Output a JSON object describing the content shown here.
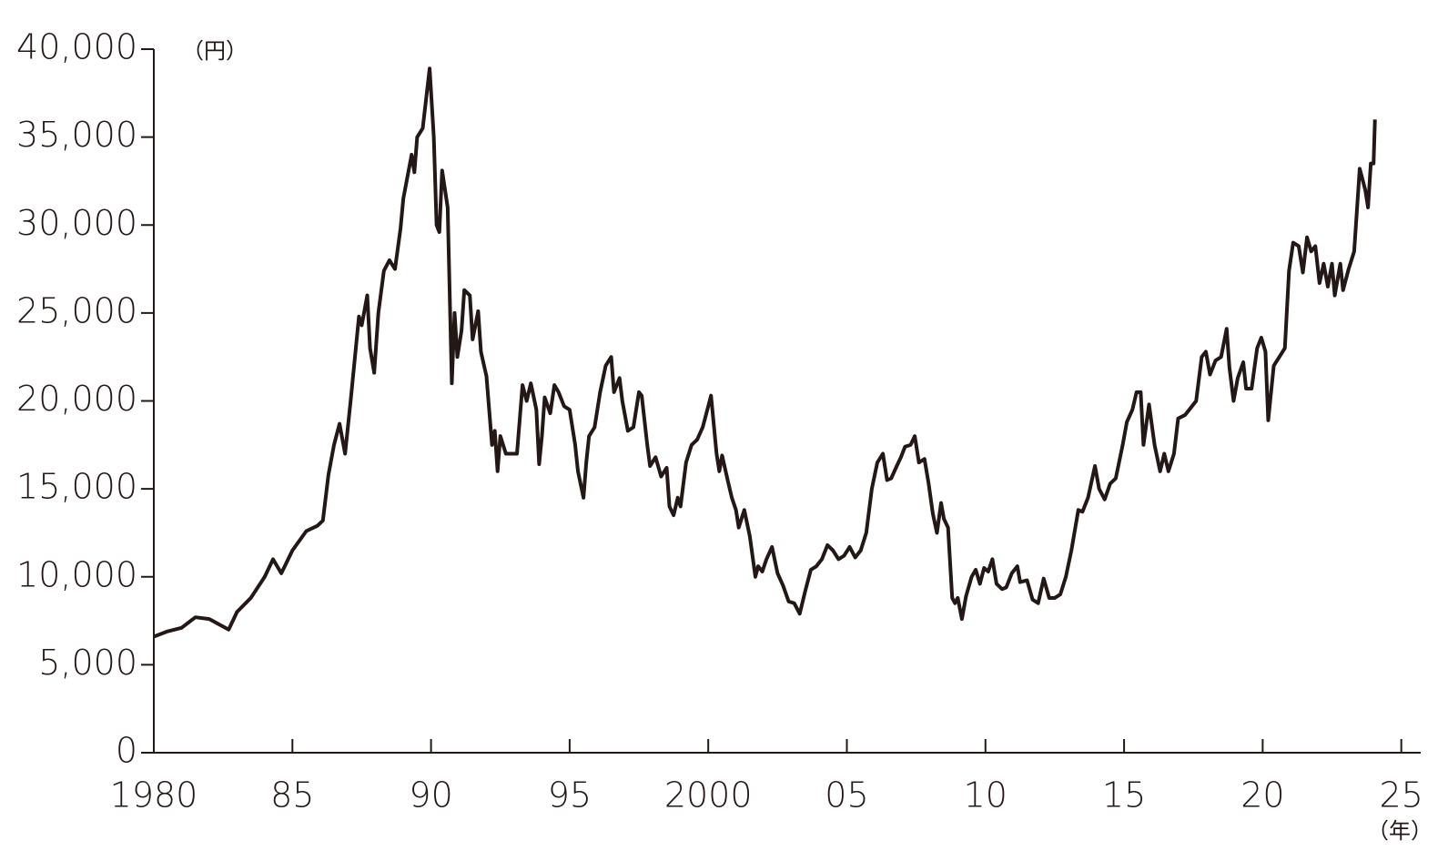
{
  "chart_data": {
    "type": "line",
    "y_unit": "（円）",
    "x_unit": "（年）",
    "color": "#231815",
    "x": [
      1980.0,
      1980.5,
      1981.0,
      1981.5,
      1982.0,
      1982.7,
      1983.0,
      1983.5,
      1984.0,
      1984.3,
      1984.6,
      1985.0,
      1985.5,
      1985.9,
      1986.1,
      1986.3,
      1986.5,
      1986.7,
      1986.9,
      1987.1,
      1987.4,
      1987.5,
      1987.7,
      1987.8,
      1987.95,
      1988.1,
      1988.3,
      1988.5,
      1988.7,
      1988.9,
      1989.0,
      1989.3,
      1989.4,
      1989.5,
      1989.7,
      1989.95,
      1990.1,
      1990.2,
      1990.3,
      1990.4,
      1990.6,
      1990.75,
      1990.85,
      1990.95,
      1991.1,
      1991.2,
      1991.4,
      1991.5,
      1991.7,
      1991.8,
      1992.0,
      1992.2,
      1992.3,
      1992.4,
      1992.5,
      1992.7,
      1992.9,
      1993.1,
      1993.3,
      1993.45,
      1993.6,
      1993.8,
      1993.9,
      1994.0,
      1994.1,
      1994.3,
      1994.45,
      1994.6,
      1994.8,
      1995.0,
      1995.2,
      1995.3,
      1995.5,
      1995.6,
      1995.7,
      1995.9,
      1996.1,
      1996.3,
      1996.5,
      1996.6,
      1996.8,
      1996.9,
      1997.1,
      1997.3,
      1997.5,
      1997.6,
      1997.8,
      1997.9,
      1998.1,
      1998.3,
      1998.5,
      1998.6,
      1998.75,
      1998.9,
      1999.0,
      1999.2,
      1999.4,
      1999.6,
      1999.8,
      2000.1,
      2000.3,
      2000.4,
      2000.5,
      2000.7,
      2000.85,
      2001.0,
      2001.1,
      2001.3,
      2001.5,
      2001.7,
      2001.8,
      2001.95,
      2002.1,
      2002.3,
      2002.5,
      2002.7,
      2002.9,
      2003.1,
      2003.3,
      2003.5,
      2003.7,
      2003.9,
      2004.1,
      2004.3,
      2004.5,
      2004.7,
      2004.9,
      2005.1,
      2005.3,
      2005.5,
      2005.7,
      2005.9,
      2006.1,
      2006.3,
      2006.45,
      2006.6,
      2006.8,
      2006.95,
      2007.1,
      2007.3,
      2007.45,
      2007.6,
      2007.8,
      2007.95,
      2008.1,
      2008.25,
      2008.4,
      2008.5,
      2008.65,
      2008.8,
      2008.9,
      2009.0,
      2009.15,
      2009.3,
      2009.5,
      2009.65,
      2009.8,
      2009.95,
      2010.1,
      2010.25,
      2010.4,
      2010.6,
      2010.75,
      2010.95,
      2011.15,
      2011.25,
      2011.5,
      2011.7,
      2011.9,
      2012.1,
      2012.3,
      2012.5,
      2012.7,
      2012.9,
      2013.1,
      2013.35,
      2013.5,
      2013.7,
      2013.95,
      2014.1,
      2014.3,
      2014.5,
      2014.7,
      2014.95,
      2015.1,
      2015.3,
      2015.45,
      2015.6,
      2015.7,
      2015.9,
      2016.1,
      2016.3,
      2016.45,
      2016.6,
      2016.8,
      2016.95,
      2017.2,
      2017.4,
      2017.6,
      2017.8,
      2017.95,
      2018.1,
      2018.3,
      2018.5,
      2018.7,
      2018.8,
      2018.95,
      2019.1,
      2019.3,
      2019.4,
      2019.6,
      2019.8,
      2019.95,
      2020.1,
      2020.2,
      2020.4,
      2020.6,
      2020.8,
      2020.95,
      2021.1,
      2021.3,
      2021.45,
      2021.6,
      2021.75,
      2021.9,
      2022.05,
      2022.2,
      2022.35,
      2022.5,
      2022.6,
      2022.8,
      2022.9,
      2023.1,
      2023.3,
      2023.5,
      2023.7,
      2023.8,
      2023.9,
      2024.0,
      2024.05
    ],
    "values": [
      6600,
      6900,
      7100,
      7700,
      7600,
      7000,
      8000,
      8800,
      10000,
      11000,
      10200,
      11500,
      12600,
      12900,
      13200,
      15800,
      17500,
      18700,
      17000,
      20000,
      24800,
      24300,
      26000,
      23000,
      21600,
      25000,
      27400,
      28000,
      27500,
      29800,
      31500,
      34000,
      33000,
      35000,
      35500,
      38900,
      35000,
      30000,
      29600,
      33100,
      31000,
      21000,
      25000,
      22500,
      24000,
      26300,
      26000,
      23500,
      25100,
      22800,
      21400,
      17500,
      18300,
      16000,
      18000,
      17000,
      17000,
      17000,
      20900,
      20000,
      21000,
      19500,
      16400,
      18000,
      20200,
      19300,
      20900,
      20500,
      19700,
      19500,
      17500,
      16000,
      14500,
      16500,
      18000,
      18500,
      20500,
      22000,
      22500,
      20500,
      21300,
      20000,
      18300,
      18500,
      20500,
      20300,
      17500,
      16300,
      16800,
      15700,
      16200,
      14000,
      13500,
      14500,
      14000,
      16500,
      17500,
      17800,
      18500,
      20300,
      17000,
      16000,
      16900,
      15500,
      14500,
      13800,
      12800,
      13800,
      12300,
      10000,
      10600,
      10300,
      11000,
      11700,
      10200,
      9500,
      8600,
      8500,
      7900,
      9200,
      10400,
      10600,
      11000,
      11800,
      11500,
      11000,
      11200,
      11700,
      11100,
      11500,
      12500,
      15000,
      16500,
      17000,
      15500,
      15600,
      16300,
      16800,
      17400,
      17500,
      18000,
      16500,
      16700,
      15300,
      13600,
      12500,
      14200,
      13300,
      12800,
      8800,
      8500,
      8800,
      7600,
      8900,
      10000,
      10400,
      9600,
      10500,
      10300,
      11000,
      9600,
      9300,
      9400,
      10200,
      10600,
      9700,
      9800,
      8700,
      8500,
      9900,
      8800,
      8800,
      9000,
      10000,
      11500,
      13800,
      13700,
      14500,
      16300,
      15000,
      14400,
      15300,
      15600,
      17500,
      18800,
      19500,
      20500,
      20500,
      17500,
      19800,
      17500,
      16000,
      17000,
      16000,
      17000,
      19000,
      19200,
      19600,
      20000,
      22500,
      22800,
      21500,
      22300,
      22500,
      24100,
      21900,
      20000,
      21300,
      22200,
      20700,
      20700,
      23000,
      23600,
      22800,
      18900,
      22000,
      22500,
      23000,
      27400,
      29000,
      28800,
      27300,
      29300,
      28500,
      28800,
      26700,
      27800,
      26500,
      27800,
      26000,
      27800,
      26300,
      27500,
      28500,
      33200,
      32000,
      31000,
      33500,
      33500,
      36000
    ],
    "xlim": [
      1980,
      2025.7
    ],
    "xticks": [
      1980,
      {
        "value": 1985,
        "label": "85"
      },
      {
        "value": 1990,
        "label": "90"
      },
      {
        "value": 1995,
        "label": "95"
      },
      2000,
      {
        "value": 2005,
        "label": "05"
      },
      {
        "value": 2010,
        "label": "10"
      },
      {
        "value": 2015,
        "label": "15"
      },
      {
        "value": 2020,
        "label": "20"
      },
      {
        "value": 2025,
        "label": "25"
      }
    ],
    "ylim": [
      0,
      40000
    ],
    "yticks": [
      0,
      {
        "value": 5000,
        "label": "5,000"
      },
      {
        "value": 10000,
        "label": "10,000"
      },
      {
        "value": 15000,
        "label": "15,000"
      },
      {
        "value": 20000,
        "label": "20,000"
      },
      {
        "value": 25000,
        "label": "25,000"
      },
      {
        "value": 30000,
        "label": "30,000"
      },
      {
        "value": 35000,
        "label": "35,000"
      },
      {
        "value": 40000,
        "label": "40,000"
      }
    ],
    "grid": false
  }
}
